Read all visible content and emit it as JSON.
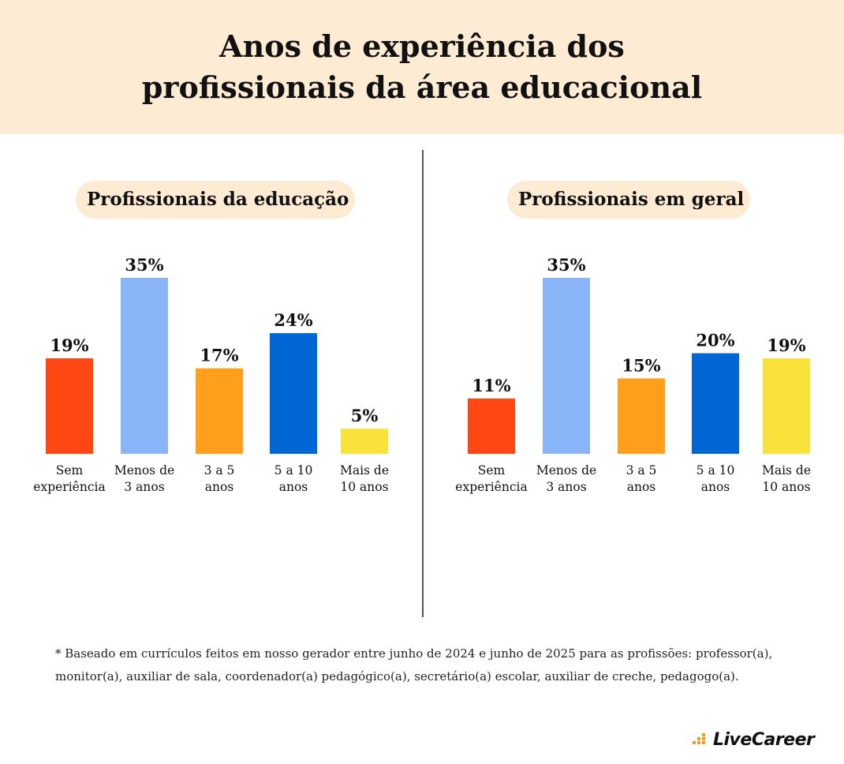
{
  "header": {
    "title_line1": "Anos de experiência dos",
    "title_line2": "profissionais da área educacional"
  },
  "colors": {
    "header_bg": "#fdebd4",
    "bar_colors": [
      "#ff4714",
      "#8ab4f8",
      "#ff9f1c",
      "#0066d4",
      "#f9e23a"
    ]
  },
  "chart_data": [
    {
      "type": "bar",
      "title": "Profissionais da educação",
      "categories": [
        [
          "Sem",
          "experiência"
        ],
        [
          "Menos de",
          "3 anos"
        ],
        [
          "3 a 5",
          "anos"
        ],
        [
          "5 a 10",
          "anos"
        ],
        [
          "Mais de",
          "10 anos"
        ]
      ],
      "values": [
        19,
        35,
        17,
        24,
        5
      ],
      "value_labels": [
        "19%",
        "35%",
        "17%",
        "24%",
        "5%"
      ],
      "xlabel": "",
      "ylabel": "",
      "ylim": [
        0,
        35
      ]
    },
    {
      "type": "bar",
      "title": "Profissionais em geral",
      "categories": [
        [
          "Sem",
          "experiência"
        ],
        [
          "Menos de",
          "3 anos"
        ],
        [
          "3 a 5",
          "anos"
        ],
        [
          "5 a 10",
          "anos"
        ],
        [
          "Mais de",
          "10 anos"
        ]
      ],
      "values": [
        11,
        35,
        15,
        20,
        19
      ],
      "value_labels": [
        "11%",
        "35%",
        "15%",
        "20%",
        "19%"
      ],
      "xlabel": "",
      "ylabel": "",
      "ylim": [
        0,
        35
      ]
    }
  ],
  "footnote": {
    "line1": "* Baseado em currículos feitos em nosso gerador entre junho de 2024 e junho de 2025 para as profissões: professor(a),",
    "line2": "monitor(a), auxiliar de sala, coordenador(a) pedagógico(a), secretário(a) escolar, auxiliar de creche, pedagogo(a)."
  },
  "logo": {
    "text": "LiveCareer",
    "icon": "livecareer-dots-icon"
  }
}
